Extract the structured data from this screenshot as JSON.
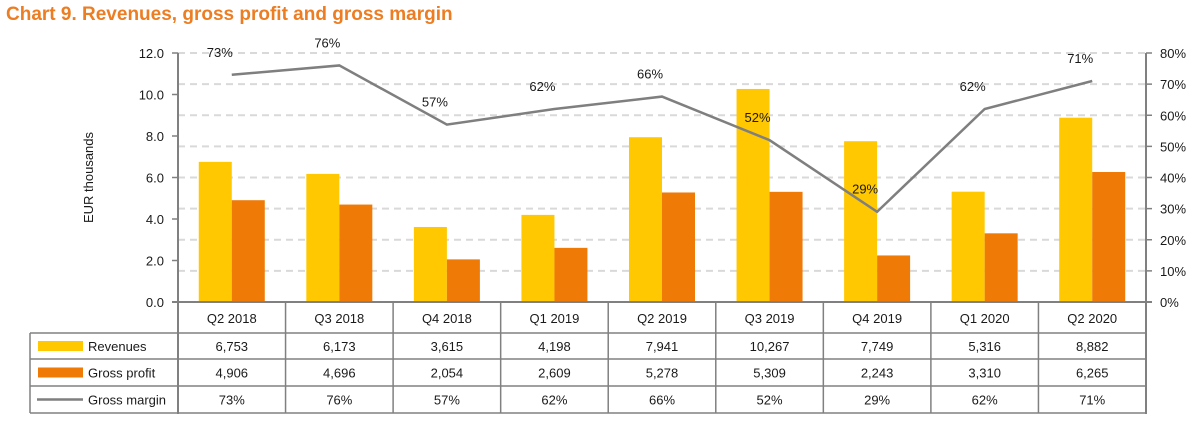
{
  "chart_data": {
    "type": "bar",
    "title": "Chart 9. Revenues, gross profit and gross margin",
    "xlabel": "",
    "ylabel": "EUR thousands",
    "y2label": "",
    "categories": [
      "Q2 2018",
      "Q3 2018",
      "Q4 2018",
      "Q1 2019",
      "Q2 2019",
      "Q3 2019",
      "Q4 2019",
      "Q1 2020",
      "Q2 2020"
    ],
    "ylim": [
      0,
      12
    ],
    "yticks": [
      "0.0",
      "2.0",
      "4.0",
      "6.0",
      "8.0",
      "10.0",
      "12.0"
    ],
    "y2lim": [
      0,
      80
    ],
    "y2ticks": [
      "0%",
      "10%",
      "20%",
      "30%",
      "40%",
      "50%",
      "60%",
      "70%",
      "80%"
    ],
    "grid": true,
    "legend": "data-table-left",
    "series": [
      {
        "name": "Revenues",
        "type": "bar",
        "axis": "left",
        "color": "#ffc800",
        "values": [
          6.753,
          6.173,
          3.615,
          4.198,
          7.941,
          10.267,
          7.749,
          5.316,
          8.882
        ],
        "table_values": [
          "6,753",
          "6,173",
          "3,615",
          "4,198",
          "7,941",
          "10,267",
          "7,749",
          "5,316",
          "8,882"
        ]
      },
      {
        "name": "Gross profit",
        "type": "bar",
        "axis": "right",
        "color": "#ef7a06",
        "values": [
          4.906,
          4.696,
          2.054,
          2.609,
          5.278,
          5.309,
          2.243,
          3.31,
          6.265
        ],
        "table_values": [
          "4,906",
          "4,696",
          "2,054",
          "2,609",
          "5,278",
          "5,309",
          "2,243",
          "3,310",
          "6,265"
        ]
      },
      {
        "name": "Gross margin",
        "type": "line",
        "axis": "right",
        "color": "#7f7f7f",
        "values": [
          73,
          76,
          57,
          62,
          66,
          52,
          29,
          62,
          71
        ],
        "table_values": [
          "73%",
          "76%",
          "57%",
          "62%",
          "66%",
          "52%",
          "29%",
          "62%",
          "71%"
        ],
        "labels": [
          "73%",
          "76%",
          "57%",
          "62%",
          "66%",
          "52%",
          "29%",
          "62%",
          "71%"
        ]
      }
    ]
  }
}
